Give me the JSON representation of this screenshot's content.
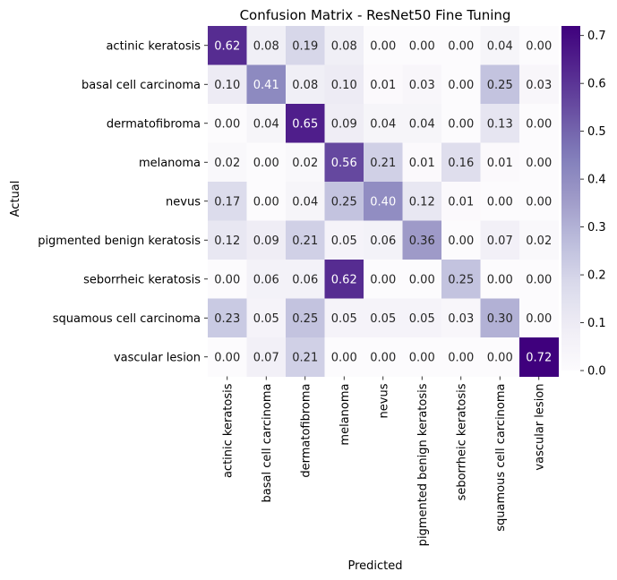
{
  "chart_data": {
    "type": "heatmap",
    "title": "Confusion Matrix - ResNet50 Fine Tuning",
    "xlabel": "Predicted",
    "ylabel": "Actual",
    "row_labels": [
      "actinic keratosis",
      "basal cell carcinoma",
      "dermatofibroma",
      "melanoma",
      "nevus",
      "pigmented benign keratosis",
      "seborrheic keratosis",
      "squamous cell carcinoma",
      "vascular lesion"
    ],
    "col_labels": [
      "actinic keratosis",
      "basal cell carcinoma",
      "dermatofibroma",
      "melanoma",
      "nevus",
      "pigmented benign keratosis",
      "seborrheic keratosis",
      "squamous cell carcinoma",
      "vascular lesion"
    ],
    "values": [
      [
        0.62,
        0.08,
        0.19,
        0.08,
        0.0,
        0.0,
        0.0,
        0.04,
        0.0
      ],
      [
        0.1,
        0.41,
        0.08,
        0.1,
        0.01,
        0.03,
        0.0,
        0.25,
        0.03
      ],
      [
        0.0,
        0.04,
        0.65,
        0.09,
        0.04,
        0.04,
        0.0,
        0.13,
        0.0
      ],
      [
        0.02,
        0.0,
        0.02,
        0.56,
        0.21,
        0.01,
        0.16,
        0.01,
        0.0
      ],
      [
        0.17,
        0.0,
        0.04,
        0.25,
        0.4,
        0.12,
        0.01,
        0.0,
        0.0
      ],
      [
        0.12,
        0.09,
        0.21,
        0.05,
        0.06,
        0.36,
        0.0,
        0.07,
        0.02
      ],
      [
        0.0,
        0.06,
        0.06,
        0.62,
        0.0,
        0.0,
        0.25,
        0.0,
        0.0
      ],
      [
        0.23,
        0.05,
        0.25,
        0.05,
        0.05,
        0.05,
        0.03,
        0.3,
        0.0
      ],
      [
        0.0,
        0.07,
        0.21,
        0.0,
        0.0,
        0.0,
        0.0,
        0.0,
        0.72
      ]
    ],
    "value_format": "0.00",
    "colormap": "Purples",
    "vmin": 0.0,
    "vmax": 0.72,
    "colorbar_ticks": [
      "0.0",
      "0.1",
      "0.2",
      "0.3",
      "0.4",
      "0.5",
      "0.6",
      "0.7"
    ],
    "colorbar_tick_values": [
      0.0,
      0.1,
      0.2,
      0.3,
      0.4,
      0.5,
      0.6,
      0.7
    ],
    "colors": {
      "low": "#fcfbfd",
      "mid": "#9e9ac8",
      "high": "#3f007d",
      "text_dark": "#262626",
      "text_light": "#ffffff"
    }
  }
}
